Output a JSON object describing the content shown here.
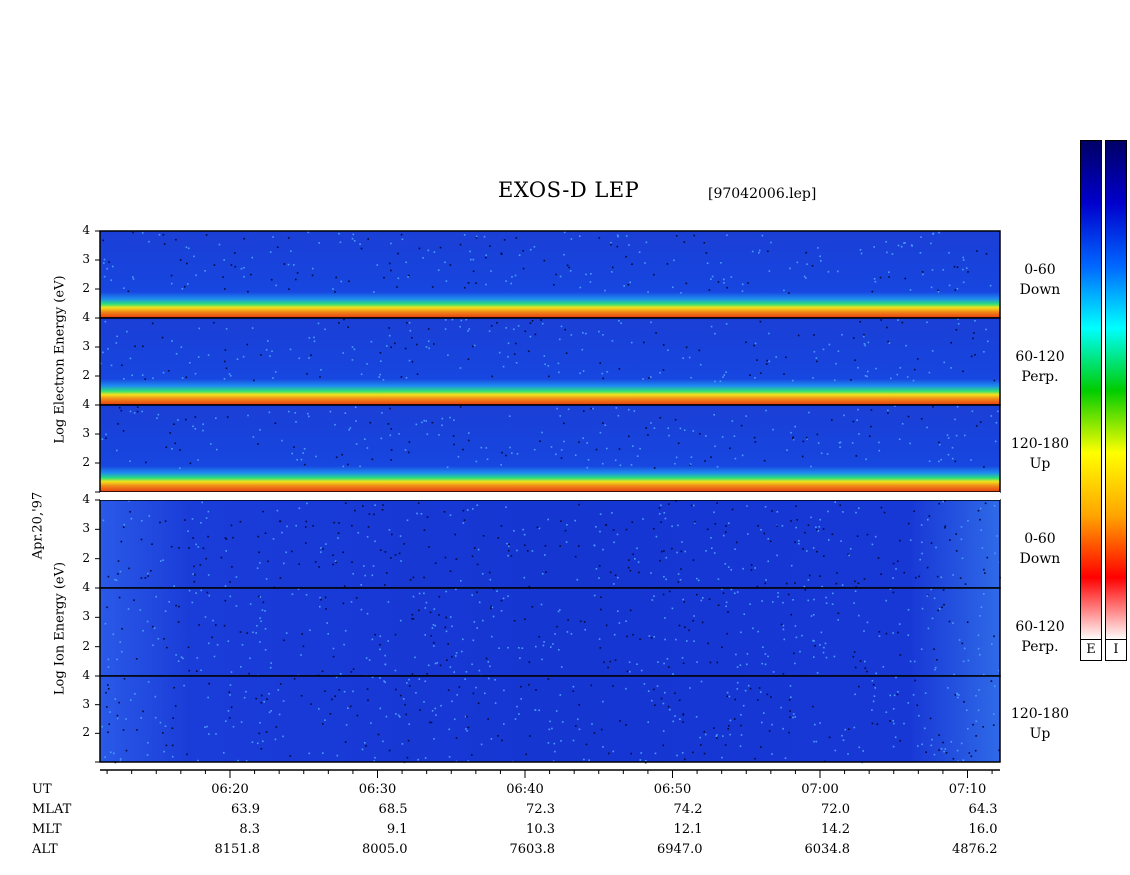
{
  "title": "EXOS-D LEP",
  "filename": "[97042006.lep]",
  "date": "Apr.20,'97",
  "electron_ylabel": "Log Electron Energy (eV)",
  "ion_ylabel": "Log Ion Energy (eV)",
  "panels": [
    {
      "species": "electron",
      "label_line1": "0-60",
      "label_line2": "Down"
    },
    {
      "species": "electron",
      "label_line1": "60-120",
      "label_line2": "Perp."
    },
    {
      "species": "electron",
      "label_line1": "120-180",
      "label_line2": "Up"
    },
    {
      "species": "ion",
      "label_line1": "0-60",
      "label_line2": "Down"
    },
    {
      "species": "ion",
      "label_line1": "60-120",
      "label_line2": "Perp."
    },
    {
      "species": "ion",
      "label_line1": "120-180",
      "label_line2": "Up"
    }
  ],
  "colorbar_letters": [
    "E",
    "I"
  ],
  "colorbar_colors": [
    "#ffffff",
    "#ff0000",
    "#ffa500",
    "#ffff00",
    "#00cc00",
    "#00ffff",
    "#0066ff",
    "#0000cc",
    "#000066"
  ],
  "chart_data": {
    "type": "heatmap",
    "title": "EXOS-D LEP",
    "ylabel": "Log Energy (eV)",
    "ylim": [
      1,
      4
    ],
    "yticks": [
      2,
      3,
      4
    ],
    "x_tick_labels": [
      "06:20",
      "06:30",
      "06:40",
      "06:50",
      "07:00",
      "07:10"
    ],
    "orbit_table": {
      "row_names": [
        "UT",
        "MLAT",
        "MLT",
        "ALT"
      ],
      "UT": [
        "06:20",
        "06:30",
        "06:40",
        "06:50",
        "07:00",
        "07:10"
      ],
      "MLAT": [
        "63.9",
        "68.5",
        "72.3",
        "74.2",
        "72.0",
        "64.3"
      ],
      "MLT": [
        "8.3",
        "9.1",
        "10.3",
        "12.1",
        "14.2",
        "16.0"
      ],
      "ALT": [
        "8151.8",
        "8005.0",
        "7603.8",
        "6947.0",
        "6034.8",
        "4876.2"
      ]
    }
  }
}
